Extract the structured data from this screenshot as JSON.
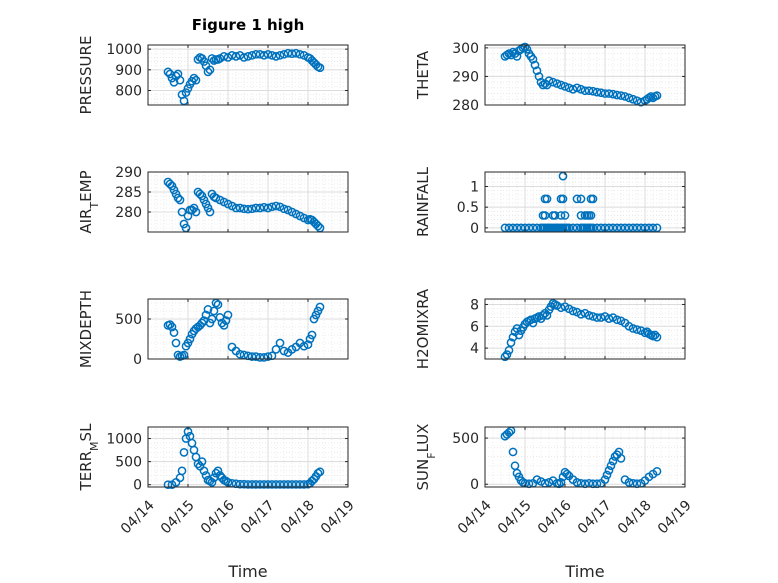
{
  "chart_data": [
    {
      "type": "scatter",
      "title": "Figure 1 high",
      "ylabel": "PRESSURE",
      "xlabel": "",
      "xlim": [
        0,
        5
      ],
      "ylim": [
        730,
        1020
      ],
      "yticks": [
        800,
        900,
        1000
      ],
      "xticks": [
        0,
        1,
        2,
        3,
        4,
        5
      ],
      "xticklabels": [],
      "color": "#0072bd",
      "x": [
        0.5,
        0.55,
        0.6,
        0.65,
        0.7,
        0.75,
        0.8,
        0.85,
        0.9,
        0.95,
        1.0,
        1.05,
        1.1,
        1.15,
        1.2,
        1.25,
        1.3,
        1.35,
        1.4,
        1.45,
        1.5,
        1.55,
        1.6,
        1.65,
        1.7,
        1.75,
        1.8,
        1.9,
        2.0,
        2.1,
        2.2,
        2.3,
        2.4,
        2.5,
        2.6,
        2.7,
        2.8,
        2.9,
        3.0,
        3.1,
        3.2,
        3.3,
        3.4,
        3.5,
        3.6,
        3.7,
        3.8,
        3.9,
        4.0,
        4.05,
        4.1,
        4.15,
        4.2,
        4.25,
        4.3
      ],
      "y": [
        890,
        880,
        860,
        840,
        870,
        880,
        850,
        780,
        750,
        790,
        810,
        830,
        845,
        860,
        850,
        950,
        960,
        955,
        940,
        920,
        890,
        900,
        955,
        945,
        950,
        950,
        955,
        965,
        960,
        970,
        965,
        970,
        960,
        965,
        970,
        975,
        975,
        970,
        975,
        970,
        965,
        970,
        975,
        980,
        978,
        980,
        975,
        970,
        960,
        955,
        945,
        935,
        925,
        915,
        910
      ]
    },
    {
      "type": "scatter",
      "title": "",
      "ylabel": "THETA",
      "xlabel": "",
      "xlim": [
        0,
        5
      ],
      "ylim": [
        280,
        301
      ],
      "yticks": [
        280,
        290,
        300
      ],
      "xticks": [
        0,
        1,
        2,
        3,
        4,
        5
      ],
      "xticklabels": [],
      "color": "#0072bd",
      "x": [
        0.5,
        0.55,
        0.6,
        0.65,
        0.7,
        0.75,
        0.8,
        0.85,
        0.9,
        0.95,
        1.0,
        1.05,
        1.1,
        1.15,
        1.2,
        1.25,
        1.3,
        1.35,
        1.4,
        1.45,
        1.5,
        1.55,
        1.6,
        1.7,
        1.8,
        1.9,
        2.0,
        2.1,
        2.2,
        2.3,
        2.4,
        2.5,
        2.6,
        2.7,
        2.8,
        2.9,
        3.0,
        3.1,
        3.2,
        3.3,
        3.4,
        3.5,
        3.6,
        3.7,
        3.8,
        3.9,
        4.0,
        4.05,
        4.1,
        4.15,
        4.2,
        4.25,
        4.3
      ],
      "y": [
        297,
        297.5,
        298,
        297.5,
        298.5,
        298,
        297,
        299,
        299.5,
        300,
        300.3,
        299.5,
        298,
        297,
        296,
        294,
        292,
        290,
        288,
        287,
        287.5,
        287,
        288.5,
        288,
        287.5,
        287,
        286.5,
        286,
        285.5,
        286,
        285.5,
        285,
        285,
        284.8,
        284.5,
        284.3,
        284,
        284,
        283.8,
        283.5,
        283.3,
        283,
        282.5,
        282,
        281.5,
        281,
        281.5,
        282,
        282.5,
        283,
        282.5,
        283,
        283.3
      ]
    },
    {
      "type": "scatter",
      "title": "",
      "ylabel": "AIR_TEMP",
      "xlabel": "",
      "xlim": [
        0,
        5
      ],
      "ylim": [
        275,
        290
      ],
      "yticks": [
        280,
        285,
        290
      ],
      "xticks": [
        0,
        1,
        2,
        3,
        4,
        5
      ],
      "xticklabels": [],
      "color": "#0072bd",
      "x": [
        0.5,
        0.55,
        0.6,
        0.65,
        0.7,
        0.75,
        0.8,
        0.85,
        0.9,
        0.95,
        1.0,
        1.05,
        1.1,
        1.15,
        1.2,
        1.25,
        1.3,
        1.35,
        1.4,
        1.45,
        1.5,
        1.55,
        1.6,
        1.65,
        1.7,
        1.8,
        1.9,
        2.0,
        2.1,
        2.2,
        2.3,
        2.4,
        2.5,
        2.6,
        2.7,
        2.8,
        2.9,
        3.0,
        3.1,
        3.2,
        3.3,
        3.4,
        3.5,
        3.6,
        3.7,
        3.8,
        3.9,
        4.0,
        4.05,
        4.1,
        4.15,
        4.2,
        4.25,
        4.3
      ],
      "y": [
        287.5,
        287,
        286.5,
        285.5,
        284.5,
        283.5,
        283,
        280,
        277,
        276,
        279,
        280.5,
        280.5,
        281,
        280,
        285,
        284.5,
        284,
        283,
        282,
        281,
        280,
        284.5,
        283.8,
        283.5,
        283,
        282.5,
        282,
        281.5,
        281,
        281,
        280.8,
        280.7,
        280.8,
        281,
        281,
        281.2,
        281,
        281.3,
        281.5,
        281.3,
        280.8,
        280.5,
        280,
        279.5,
        279,
        278.5,
        278,
        278.2,
        278,
        277.5,
        277,
        276.5,
        276
      ]
    },
    {
      "type": "scatter",
      "title": "",
      "ylabel": "RAINFALL",
      "xlabel": "",
      "xlim": [
        0,
        5
      ],
      "ylim": [
        -0.1,
        1.35
      ],
      "yticks": [
        0,
        0.5,
        1
      ],
      "xticks": [
        0,
        1,
        2,
        3,
        4,
        5
      ],
      "xticklabels": [],
      "color": "#0072bd",
      "x": [
        0.5,
        0.6,
        0.7,
        0.8,
        0.9,
        1.0,
        1.1,
        1.2,
        1.3,
        1.4,
        1.45,
        1.5,
        1.55,
        1.6,
        1.65,
        1.7,
        1.75,
        1.8,
        1.85,
        1.9,
        1.95,
        2.0,
        2.05,
        2.1,
        2.2,
        2.3,
        2.4,
        2.45,
        2.5,
        2.55,
        2.6,
        2.65,
        2.7,
        2.8,
        2.9,
        3.0,
        3.1,
        3.2,
        3.3,
        3.4,
        3.5,
        3.6,
        3.7,
        3.8,
        3.9,
        4.0,
        4.1,
        4.2,
        4.3,
        1.45,
        1.5,
        1.7,
        1.75,
        1.9,
        2.0,
        2.4,
        2.5,
        2.55,
        2.6,
        2.65,
        1.5,
        1.55,
        1.9,
        1.95,
        2.3,
        2.4,
        2.65,
        2.7,
        1.95
      ],
      "y": [
        0,
        0,
        0,
        0,
        0,
        0,
        0,
        0,
        0,
        0,
        0,
        0,
        0,
        0,
        0,
        0,
        0,
        0,
        0,
        0,
        0,
        0,
        0,
        0,
        0,
        0,
        0,
        0,
        0,
        0,
        0,
        0,
        0,
        0,
        0,
        0,
        0,
        0,
        0,
        0,
        0,
        0,
        0,
        0,
        0,
        0,
        0,
        0,
        0,
        0.3,
        0.3,
        0.3,
        0.3,
        0.3,
        0.3,
        0.3,
        0.3,
        0.3,
        0.3,
        0.3,
        0.7,
        0.7,
        0.7,
        0.7,
        0.7,
        0.7,
        0.7,
        0.7,
        1.25
      ]
    },
    {
      "type": "scatter",
      "title": "",
      "ylabel": "MIXDEPTH",
      "xlabel": "",
      "xlim": [
        0,
        5
      ],
      "ylim": [
        0,
        750
      ],
      "yticks": [
        0,
        500
      ],
      "xticks": [
        0,
        1,
        2,
        3,
        4,
        5
      ],
      "xticklabels": [],
      "color": "#0072bd",
      "x": [
        0.5,
        0.55,
        0.6,
        0.65,
        0.7,
        0.75,
        0.8,
        0.85,
        0.9,
        0.95,
        1.0,
        1.05,
        1.1,
        1.15,
        1.2,
        1.25,
        1.3,
        1.35,
        1.4,
        1.45,
        1.5,
        1.55,
        1.6,
        1.65,
        1.7,
        1.75,
        1.8,
        1.85,
        1.9,
        1.95,
        2.0,
        2.1,
        2.2,
        2.3,
        2.4,
        2.5,
        2.6,
        2.7,
        2.8,
        2.9,
        3.0,
        3.1,
        3.2,
        3.3,
        3.4,
        3.5,
        3.6,
        3.7,
        3.8,
        3.9,
        4.0,
        4.05,
        4.1,
        4.15,
        4.2,
        4.25,
        4.3
      ],
      "y": [
        420,
        430,
        400,
        330,
        200,
        50,
        30,
        40,
        50,
        160,
        200,
        250,
        310,
        350,
        380,
        400,
        420,
        450,
        480,
        550,
        620,
        450,
        500,
        600,
        700,
        680,
        520,
        450,
        420,
        480,
        550,
        150,
        100,
        60,
        50,
        40,
        30,
        30,
        20,
        20,
        30,
        40,
        120,
        200,
        100,
        80,
        120,
        150,
        200,
        160,
        180,
        250,
        300,
        500,
        550,
        600,
        650
      ]
    },
    {
      "type": "scatter",
      "title": "",
      "ylabel": "H2OMIXRA",
      "xlabel": "",
      "xlim": [
        0,
        5
      ],
      "ylim": [
        3,
        8.5
      ],
      "yticks": [
        4,
        6,
        8
      ],
      "xticks": [
        0,
        1,
        2,
        3,
        4,
        5
      ],
      "xticklabels": [],
      "color": "#0072bd",
      "x": [
        0.5,
        0.55,
        0.6,
        0.65,
        0.7,
        0.75,
        0.8,
        0.85,
        0.9,
        0.95,
        1.0,
        1.05,
        1.1,
        1.15,
        1.2,
        1.25,
        1.3,
        1.35,
        1.4,
        1.45,
        1.5,
        1.55,
        1.6,
        1.65,
        1.7,
        1.75,
        1.8,
        1.9,
        2.0,
        2.1,
        2.2,
        2.3,
        2.4,
        2.5,
        2.6,
        2.7,
        2.8,
        2.9,
        3.0,
        3.1,
        3.2,
        3.3,
        3.4,
        3.5,
        3.6,
        3.7,
        3.8,
        3.9,
        4.0,
        4.05,
        4.1,
        4.15,
        4.2,
        4.25,
        4.3
      ],
      "y": [
        3.2,
        3.4,
        3.8,
        4.5,
        5.0,
        5.5,
        5.8,
        5.2,
        5.6,
        5.9,
        6.2,
        6.4,
        6.5,
        6.6,
        6.3,
        6.7,
        6.8,
        6.9,
        6.7,
        7.0,
        7.2,
        7.0,
        7.5,
        7.8,
        8.1,
        8.0,
        7.9,
        7.7,
        7.8,
        7.6,
        7.4,
        7.3,
        7.1,
        7.2,
        7.0,
        6.9,
        6.8,
        6.8,
        6.9,
        6.7,
        6.8,
        6.6,
        6.5,
        6.3,
        6.0,
        5.8,
        5.7,
        5.6,
        5.4,
        5.5,
        5.3,
        5.2,
        5.1,
        5.2,
        5.0
      ]
    },
    {
      "type": "scatter",
      "title": "",
      "ylabel": "TERR_MSL",
      "xlabel": "Time",
      "xlim": [
        0,
        5
      ],
      "ylim": [
        -50,
        1250
      ],
      "yticks": [
        0,
        500,
        1000
      ],
      "xticks": [
        0,
        1,
        2,
        3,
        4,
        5
      ],
      "xticklabels": [
        "04/14",
        "04/15",
        "04/16",
        "04/17",
        "04/18",
        "04/19"
      ],
      "color": "#0072bd",
      "x": [
        0.5,
        0.6,
        0.7,
        0.8,
        0.85,
        0.9,
        0.95,
        1.0,
        1.05,
        1.1,
        1.15,
        1.2,
        1.25,
        1.3,
        1.35,
        1.4,
        1.45,
        1.5,
        1.55,
        1.6,
        1.65,
        1.7,
        1.75,
        1.8,
        1.85,
        1.9,
        1.95,
        2.0,
        2.1,
        2.2,
        2.3,
        2.4,
        2.5,
        2.6,
        2.7,
        2.8,
        2.9,
        3.0,
        3.1,
        3.2,
        3.3,
        3.4,
        3.5,
        3.6,
        3.7,
        3.8,
        3.9,
        4.0,
        4.05,
        4.1,
        4.15,
        4.2,
        4.25,
        4.3
      ],
      "y": [
        0,
        0,
        50,
        150,
        300,
        700,
        1000,
        1150,
        1050,
        900,
        750,
        600,
        450,
        400,
        500,
        300,
        200,
        100,
        80,
        50,
        150,
        250,
        300,
        200,
        150,
        100,
        80,
        50,
        30,
        20,
        10,
        10,
        5,
        5,
        5,
        5,
        5,
        5,
        5,
        5,
        5,
        5,
        5,
        5,
        5,
        5,
        5,
        10,
        30,
        80,
        120,
        180,
        250,
        280
      ]
    },
    {
      "type": "scatter",
      "title": "",
      "ylabel": "SUN_FLUX",
      "xlabel": "Time",
      "xlim": [
        0,
        5
      ],
      "ylim": [
        -30,
        620
      ],
      "yticks": [
        0,
        500
      ],
      "xticks": [
        0,
        1,
        2,
        3,
        4,
        5
      ],
      "xticklabels": [
        "04/14",
        "04/15",
        "04/16",
        "04/17",
        "04/18",
        "04/19"
      ],
      "color": "#0072bd",
      "x": [
        0.5,
        0.55,
        0.6,
        0.65,
        0.7,
        0.75,
        0.8,
        0.85,
        0.9,
        0.95,
        1.0,
        1.1,
        1.2,
        1.3,
        1.4,
        1.5,
        1.6,
        1.7,
        1.8,
        1.85,
        1.9,
        1.95,
        2.0,
        2.05,
        2.1,
        2.2,
        2.3,
        2.4,
        2.5,
        2.6,
        2.7,
        2.8,
        2.9,
        3.0,
        3.05,
        3.1,
        3.15,
        3.2,
        3.25,
        3.3,
        3.35,
        3.4,
        3.5,
        3.6,
        3.7,
        3.8,
        3.9,
        4.0,
        4.1,
        4.2,
        4.3
      ],
      "y": [
        520,
        540,
        560,
        580,
        350,
        200,
        120,
        80,
        40,
        20,
        10,
        5,
        10,
        50,
        30,
        10,
        20,
        40,
        10,
        5,
        20,
        80,
        130,
        110,
        90,
        50,
        20,
        10,
        5,
        10,
        5,
        5,
        10,
        50,
        100,
        150,
        200,
        250,
        300,
        320,
        350,
        280,
        50,
        20,
        10,
        5,
        10,
        40,
        80,
        110,
        140
      ]
    }
  ]
}
